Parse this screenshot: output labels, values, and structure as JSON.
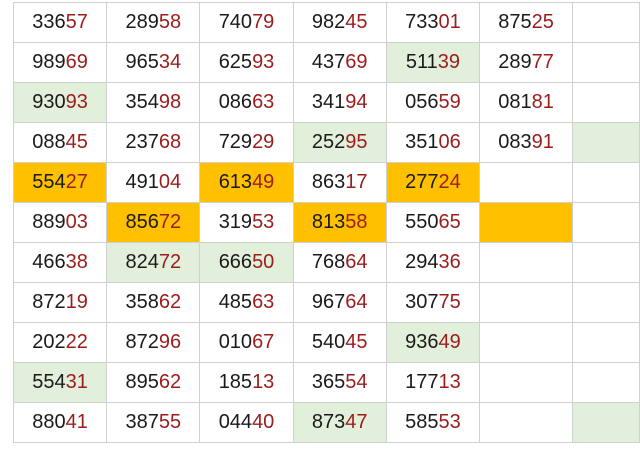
{
  "colors": {
    "green_fill": "#e2efda",
    "orange_fill": "#ffc000",
    "suffix_text": "#9c1c1c",
    "prefix_text": "#1a1a1a"
  },
  "rows": [
    [
      {
        "n": "33657",
        "f": ""
      },
      {
        "n": "28958",
        "f": ""
      },
      {
        "n": "74079",
        "f": ""
      },
      {
        "n": "98245",
        "f": ""
      },
      {
        "n": "73301",
        "f": ""
      },
      {
        "n": "87525",
        "f": ""
      },
      {
        "n": "",
        "f": ""
      }
    ],
    [
      {
        "n": "98969",
        "f": ""
      },
      {
        "n": "96534",
        "f": ""
      },
      {
        "n": "62593",
        "f": ""
      },
      {
        "n": "43769",
        "f": ""
      },
      {
        "n": "51139",
        "f": "g"
      },
      {
        "n": "28977",
        "f": ""
      },
      {
        "n": "",
        "f": ""
      }
    ],
    [
      {
        "n": "93093",
        "f": "g"
      },
      {
        "n": "35498",
        "f": ""
      },
      {
        "n": "08663",
        "f": ""
      },
      {
        "n": "34194",
        "f": ""
      },
      {
        "n": "05659",
        "f": ""
      },
      {
        "n": "08181",
        "f": ""
      },
      {
        "n": "",
        "f": ""
      }
    ],
    [
      {
        "n": "08845",
        "f": ""
      },
      {
        "n": "23768",
        "f": ""
      },
      {
        "n": "72929",
        "f": ""
      },
      {
        "n": "25295",
        "f": "g"
      },
      {
        "n": "35106",
        "f": ""
      },
      {
        "n": "08391",
        "f": ""
      },
      {
        "n": "",
        "f": "g"
      }
    ],
    [
      {
        "n": "55427",
        "f": "o"
      },
      {
        "n": "49104",
        "f": ""
      },
      {
        "n": "61349",
        "f": "o"
      },
      {
        "n": "86317",
        "f": ""
      },
      {
        "n": "27724",
        "f": "o"
      },
      {
        "n": "",
        "f": ""
      },
      {
        "n": "",
        "f": ""
      }
    ],
    [
      {
        "n": "88903",
        "f": ""
      },
      {
        "n": "85672",
        "f": "o"
      },
      {
        "n": "31953",
        "f": ""
      },
      {
        "n": "81358",
        "f": "o"
      },
      {
        "n": "55065",
        "f": ""
      },
      {
        "n": "",
        "f": "o"
      },
      {
        "n": "",
        "f": ""
      }
    ],
    [
      {
        "n": "46638",
        "f": ""
      },
      {
        "n": "82472",
        "f": "g"
      },
      {
        "n": "66650",
        "f": "g"
      },
      {
        "n": "76864",
        "f": ""
      },
      {
        "n": "29436",
        "f": ""
      },
      {
        "n": "",
        "f": ""
      },
      {
        "n": "",
        "f": ""
      }
    ],
    [
      {
        "n": "87219",
        "f": ""
      },
      {
        "n": "35862",
        "f": ""
      },
      {
        "n": "48563",
        "f": ""
      },
      {
        "n": "96764",
        "f": ""
      },
      {
        "n": "30775",
        "f": ""
      },
      {
        "n": "",
        "f": ""
      },
      {
        "n": "",
        "f": ""
      }
    ],
    [
      {
        "n": "20222",
        "f": ""
      },
      {
        "n": "87296",
        "f": ""
      },
      {
        "n": "01067",
        "f": ""
      },
      {
        "n": "54045",
        "f": ""
      },
      {
        "n": "93649",
        "f": "g"
      },
      {
        "n": "",
        "f": ""
      },
      {
        "n": "",
        "f": ""
      }
    ],
    [
      {
        "n": "55431",
        "f": "g"
      },
      {
        "n": "89562",
        "f": ""
      },
      {
        "n": "18513",
        "f": ""
      },
      {
        "n": "36554",
        "f": ""
      },
      {
        "n": "17713",
        "f": ""
      },
      {
        "n": "",
        "f": ""
      },
      {
        "n": "",
        "f": ""
      }
    ],
    [
      {
        "n": "88041",
        "f": ""
      },
      {
        "n": "38755",
        "f": ""
      },
      {
        "n": "04440",
        "f": ""
      },
      {
        "n": "87347",
        "f": "g"
      },
      {
        "n": "58553",
        "f": ""
      },
      {
        "n": "",
        "f": ""
      },
      {
        "n": "",
        "f": "g"
      }
    ]
  ]
}
